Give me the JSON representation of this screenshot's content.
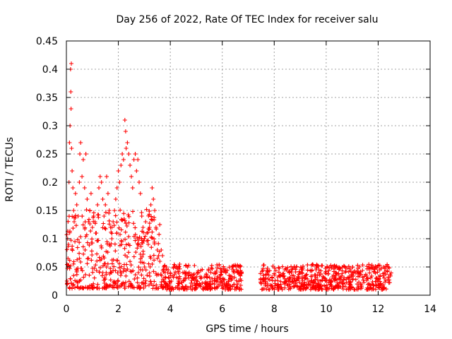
{
  "chart_data": {
    "type": "scatter",
    "title": "Day 256 of 2022, Rate Of TEC Index for receiver salu",
    "xlabel": "GPS time / hours",
    "ylabel": "ROTI / TECUs",
    "xlim": [
      0,
      14
    ],
    "ylim": [
      0,
      0.45
    ],
    "xticks": [
      0,
      2,
      4,
      6,
      8,
      10,
      12,
      14
    ],
    "xtick_labels": [
      "0",
      "2",
      "4",
      "6",
      "8",
      "10",
      "12",
      "14"
    ],
    "yticks": [
      0,
      0.05,
      0.1,
      0.15,
      0.2,
      0.25,
      0.3,
      0.35,
      0.4,
      0.45
    ],
    "ytick_labels": [
      "0",
      "0.05",
      "0.1",
      "0.15",
      "0.2",
      "0.25",
      "0.3",
      "0.35",
      "0.4",
      "0.45"
    ],
    "grid": true,
    "marker": "+",
    "color": "#ff0000",
    "series": [
      {
        "name": "ROTI",
        "points": [
          [
            0.05,
            0.1
          ],
          [
            0.08,
            0.09
          ],
          [
            0.1,
            0.2
          ],
          [
            0.12,
            0.27
          ],
          [
            0.14,
            0.3
          ],
          [
            0.16,
            0.4
          ],
          [
            0.17,
            0.36
          ],
          [
            0.18,
            0.33
          ],
          [
            0.19,
            0.41
          ],
          [
            0.2,
            0.26
          ],
          [
            0.22,
            0.22
          ],
          [
            0.25,
            0.19
          ],
          [
            0.28,
            0.15
          ],
          [
            0.3,
            0.13
          ],
          [
            0.35,
            0.18
          ],
          [
            0.4,
            0.16
          ],
          [
            0.45,
            0.14
          ],
          [
            0.5,
            0.2
          ],
          [
            0.52,
            0.25
          ],
          [
            0.55,
            0.27
          ],
          [
            0.6,
            0.21
          ],
          [
            0.65,
            0.24
          ],
          [
            0.7,
            0.19
          ],
          [
            0.75,
            0.25
          ],
          [
            0.8,
            0.17
          ],
          [
            0.85,
            0.13
          ],
          [
            0.9,
            0.15
          ],
          [
            0.95,
            0.18
          ],
          [
            1.0,
            0.12
          ],
          [
            1.05,
            0.14
          ],
          [
            1.1,
            0.13
          ],
          [
            1.15,
            0.11
          ],
          [
            1.2,
            0.16
          ],
          [
            1.25,
            0.19
          ],
          [
            1.3,
            0.21
          ],
          [
            1.35,
            0.2
          ],
          [
            1.4,
            0.17
          ],
          [
            1.45,
            0.14
          ],
          [
            1.5,
            0.16
          ],
          [
            1.55,
            0.21
          ],
          [
            1.6,
            0.18
          ],
          [
            1.65,
            0.15
          ],
          [
            1.7,
            0.12
          ],
          [
            1.75,
            0.1
          ],
          [
            1.8,
            0.13
          ],
          [
            1.85,
            0.15
          ],
          [
            1.9,
            0.17
          ],
          [
            1.95,
            0.19
          ],
          [
            2.0,
            0.22
          ],
          [
            2.05,
            0.2
          ],
          [
            2.1,
            0.23
          ],
          [
            2.15,
            0.25
          ],
          [
            2.2,
            0.24
          ],
          [
            2.25,
            0.31
          ],
          [
            2.28,
            0.29
          ],
          [
            2.3,
            0.26
          ],
          [
            2.35,
            0.27
          ],
          [
            2.4,
            0.25
          ],
          [
            2.45,
            0.23
          ],
          [
            2.5,
            0.21
          ],
          [
            2.55,
            0.19
          ],
          [
            2.6,
            0.24
          ],
          [
            2.65,
            0.25
          ],
          [
            2.7,
            0.22
          ],
          [
            2.75,
            0.24
          ],
          [
            2.8,
            0.2
          ],
          [
            2.85,
            0.18
          ],
          [
            2.9,
            0.14
          ],
          [
            2.95,
            0.12
          ],
          [
            3.0,
            0.1
          ],
          [
            3.05,
            0.13
          ],
          [
            3.1,
            0.11
          ],
          [
            3.15,
            0.09
          ],
          [
            3.2,
            0.12
          ],
          [
            3.25,
            0.16
          ],
          [
            3.3,
            0.19
          ],
          [
            3.35,
            0.17
          ],
          [
            3.4,
            0.15
          ],
          [
            3.45,
            0.12
          ],
          [
            3.5,
            0.08
          ],
          [
            3.55,
            0.07
          ],
          [
            3.6,
            0.06
          ],
          [
            3.65,
            0.08
          ],
          [
            3.7,
            0.07
          ],
          [
            3.75,
            0.05
          ],
          [
            3.8,
            0.04
          ],
          [
            3.85,
            0.05
          ],
          [
            3.9,
            0.04
          ],
          [
            3.95,
            0.03
          ],
          [
            4.0,
            0.04
          ]
        ]
      }
    ],
    "annotation": "dense cluster of points near 0.01–0.05 ROTI from 0 to 12.5 hours, with a data gap around 6.8–7.5 hours"
  }
}
